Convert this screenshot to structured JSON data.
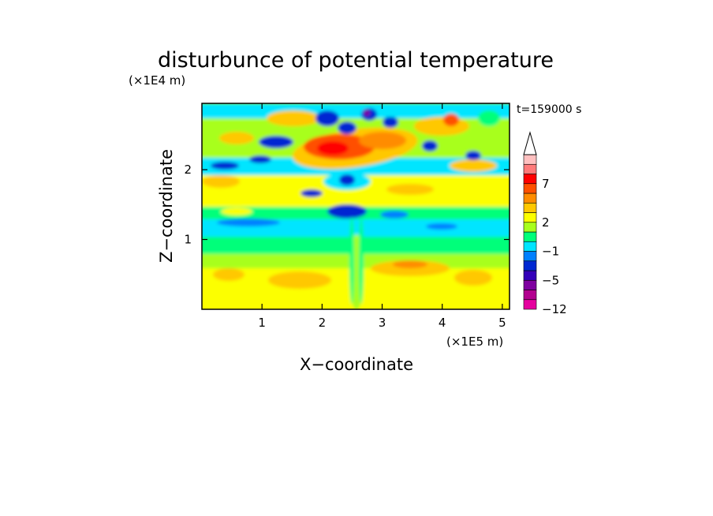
{
  "chart_data": {
    "type": "heatmap",
    "title": "disturbunce of potential temperature",
    "time_label": "t=159000 s",
    "xlabel": "X−coordinate",
    "ylabel": "Z−coordinate",
    "x_unit": "(×1E5 m)",
    "y_unit": "(×1E4 m)",
    "xlim": [
      0,
      5.12
    ],
    "ylim": [
      0,
      2.95
    ],
    "xticks": [
      1,
      2,
      3,
      4,
      5
    ],
    "yticks": [
      1,
      2
    ],
    "xtick_labels": [
      "1",
      "2",
      "3",
      "4",
      "5"
    ],
    "ytick_labels": [
      "1",
      "2"
    ],
    "colorbar": {
      "level_colors": [
        "#e5009e",
        "#b3008f",
        "#7f00a0",
        "#3400b9",
        "#0028d2",
        "#0080ff",
        "#00e5ff",
        "#00ff7a",
        "#a8ff1e",
        "#fcff00",
        "#ffc800",
        "#ff8c00",
        "#ff5000",
        "#ff0000",
        "#ff7a7a",
        "#ffc0c0"
      ],
      "extend_top_color": "#ffffff",
      "tick_labels": [
        "7",
        "2",
        "−1",
        "−5",
        "−12"
      ],
      "tick_level_index": [
        13.0,
        9.0,
        6.0,
        3.0,
        0.0
      ]
    },
    "features": [
      {
        "desc": "upper warm band",
        "x": 2.3,
        "z": 2.3,
        "value": 7
      },
      {
        "desc": "warm blob",
        "x": 4.15,
        "z": 2.75,
        "value": 7
      },
      {
        "desc": "cold cells",
        "x": 2.2,
        "z": 2.7,
        "value": -5
      },
      {
        "desc": "cold band",
        "x": 0.9,
        "z": 2.25,
        "value": -4
      },
      {
        "desc": "cold band",
        "x": 2.3,
        "z": 1.3,
        "value": -4
      },
      {
        "desc": "cool layer",
        "x": 2.5,
        "z": 1.15,
        "value": -1
      },
      {
        "desc": "lower warm layer",
        "x": 2.5,
        "z": 0.45,
        "value": 2
      }
    ]
  }
}
